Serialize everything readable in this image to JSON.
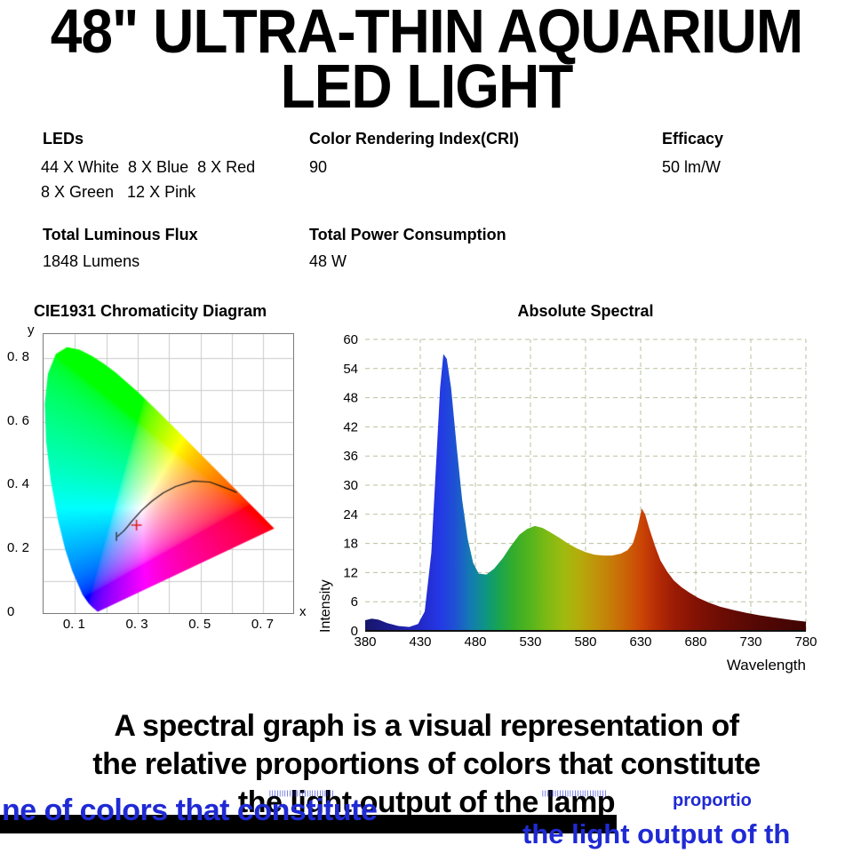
{
  "title": {
    "line1": "48\" ULTRA-THIN AQUARIUM",
    "line2": "LED LIGHT"
  },
  "specs": {
    "leds": {
      "label": "LEDs",
      "line1": "44 X White  8 X Blue  8 X Red",
      "line2": "8 X Green   12 X Pink"
    },
    "cri": {
      "label": "Color Rendering Index(CRI)",
      "value": "90"
    },
    "efficacy": {
      "label": "Efficacy",
      "value": "50 lm/W"
    },
    "luminous_flux": {
      "label": "Total Luminous Flux",
      "value": "1848 Lumens"
    },
    "power": {
      "label": "Total Power Consumption",
      "value": "48 W"
    }
  },
  "chart_data": [
    {
      "type": "scatter",
      "title": "CIE1931 Chromaticity Diagram",
      "xlabel": "x",
      "ylabel": "y",
      "xlim": [
        0,
        0.795
      ],
      "ylim": [
        0,
        0.875
      ],
      "grid_step": 0.1,
      "x_ticks": [
        0.1,
        0.3,
        0.5,
        0.7
      ],
      "x_tick_labels": [
        "0. 1",
        "0. 3",
        "0. 5",
        "0. 7"
      ],
      "y_ticks": [
        0,
        0.2,
        0.4,
        0.6,
        0.8
      ],
      "y_tick_labels": [
        "0",
        "0. 2",
        "0. 4",
        "0. 6",
        "0. 8"
      ],
      "white_point_marker": {
        "x": 0.296,
        "y": 0.276,
        "symbol": "+",
        "color": "#e02020"
      },
      "planckian_locus": [
        [
          0.235,
          0.24
        ],
        [
          0.256,
          0.258
        ],
        [
          0.27,
          0.274
        ],
        [
          0.281,
          0.288
        ],
        [
          0.313,
          0.323
        ],
        [
          0.346,
          0.352
        ],
        [
          0.381,
          0.377
        ],
        [
          0.421,
          0.397
        ],
        [
          0.477,
          0.414
        ],
        [
          0.529,
          0.411
        ],
        [
          0.565,
          0.398
        ],
        [
          0.6,
          0.385
        ],
        [
          0.615,
          0.378
        ]
      ],
      "spectral_locus": [
        [
          0.1741,
          0.005
        ],
        [
          0.1733,
          0.0048
        ],
        [
          0.1726,
          0.0048
        ],
        [
          0.1714,
          0.0051
        ],
        [
          0.1689,
          0.0069
        ],
        [
          0.1644,
          0.0109
        ],
        [
          0.1566,
          0.0177
        ],
        [
          0.144,
          0.0297
        ],
        [
          0.1241,
          0.0578
        ],
        [
          0.0913,
          0.1327
        ],
        [
          0.0687,
          0.2007
        ],
        [
          0.0454,
          0.295
        ],
        [
          0.0235,
          0.4127
        ],
        [
          0.0082,
          0.5384
        ],
        [
          0.0039,
          0.6548
        ],
        [
          0.0139,
          0.7502
        ],
        [
          0.0389,
          0.812
        ],
        [
          0.0743,
          0.8338
        ],
        [
          0.1142,
          0.8262
        ],
        [
          0.1547,
          0.8059
        ],
        [
          0.1929,
          0.7816
        ],
        [
          0.2296,
          0.7543
        ],
        [
          0.3016,
          0.6923
        ],
        [
          0.3731,
          0.6245
        ],
        [
          0.4441,
          0.5547
        ],
        [
          0.5125,
          0.4866
        ],
        [
          0.5752,
          0.4242
        ],
        [
          0.627,
          0.3725
        ],
        [
          0.6658,
          0.334
        ],
        [
          0.6915,
          0.3083
        ],
        [
          0.719,
          0.2809
        ],
        [
          0.7347,
          0.2653
        ]
      ]
    },
    {
      "type": "area",
      "title": "Absolute Spectral",
      "xlabel": "Wavelength",
      "ylabel": "Intensity",
      "xlim": [
        380,
        780
      ],
      "ylim": [
        0,
        60
      ],
      "grid": true,
      "x_ticks": [
        380,
        430,
        480,
        530,
        580,
        630,
        680,
        730,
        780
      ],
      "y_ticks": [
        0,
        6,
        12,
        18,
        24,
        30,
        36,
        42,
        48,
        54,
        60
      ],
      "points": [
        [
          380,
          2.2
        ],
        [
          386,
          2.5
        ],
        [
          392,
          2.3
        ],
        [
          400,
          1.6
        ],
        [
          410,
          1.0
        ],
        [
          420,
          0.8
        ],
        [
          428,
          1.4
        ],
        [
          434,
          4
        ],
        [
          440,
          16
        ],
        [
          444,
          33
        ],
        [
          448,
          50
        ],
        [
          451,
          57
        ],
        [
          454,
          56
        ],
        [
          458,
          50
        ],
        [
          463,
          38
        ],
        [
          468,
          27
        ],
        [
          473,
          19
        ],
        [
          478,
          14
        ],
        [
          483,
          11.8
        ],
        [
          490,
          11.6
        ],
        [
          497,
          12.8
        ],
        [
          505,
          15
        ],
        [
          512,
          17.4
        ],
        [
          520,
          19.8
        ],
        [
          527,
          21
        ],
        [
          534,
          21.6
        ],
        [
          541,
          21.2
        ],
        [
          548,
          20.3
        ],
        [
          556,
          19.2
        ],
        [
          564,
          18
        ],
        [
          572,
          17
        ],
        [
          580,
          16.2
        ],
        [
          588,
          15.7
        ],
        [
          596,
          15.5
        ],
        [
          604,
          15.5
        ],
        [
          612,
          15.9
        ],
        [
          618,
          16.6
        ],
        [
          623,
          18
        ],
        [
          627,
          21
        ],
        [
          631,
          25.2
        ],
        [
          634,
          24
        ],
        [
          638,
          21
        ],
        [
          643,
          17.5
        ],
        [
          648,
          14.5
        ],
        [
          654,
          12.2
        ],
        [
          660,
          10.4
        ],
        [
          667,
          9
        ],
        [
          674,
          7.9
        ],
        [
          682,
          6.8
        ],
        [
          692,
          5.8
        ],
        [
          702,
          5
        ],
        [
          714,
          4.3
        ],
        [
          726,
          3.7
        ],
        [
          738,
          3.2
        ],
        [
          750,
          2.8
        ],
        [
          762,
          2.4
        ],
        [
          772,
          2.1
        ],
        [
          780,
          1.9
        ]
      ],
      "gradient_stops": [
        [
          380,
          "#17166a"
        ],
        [
          405,
          "#1d1d96"
        ],
        [
          430,
          "#2329c8"
        ],
        [
          448,
          "#2438e6"
        ],
        [
          462,
          "#1e53d2"
        ],
        [
          475,
          "#1479b4"
        ],
        [
          488,
          "#0d9387"
        ],
        [
          500,
          "#16a355"
        ],
        [
          515,
          "#35ad2a"
        ],
        [
          530,
          "#55b51c"
        ],
        [
          545,
          "#7cba14"
        ],
        [
          560,
          "#9fbb0f"
        ],
        [
          575,
          "#b5ab0b"
        ],
        [
          590,
          "#c0920a"
        ],
        [
          605,
          "#c67908"
        ],
        [
          620,
          "#cb5c06"
        ],
        [
          632,
          "#c94205"
        ],
        [
          645,
          "#b52c05"
        ],
        [
          660,
          "#9c1c05"
        ],
        [
          680,
          "#831204"
        ],
        [
          705,
          "#6b0c04"
        ],
        [
          735,
          "#550804"
        ],
        [
          780,
          "#3f0503"
        ]
      ],
      "gridline_color": "#b7c19e"
    }
  ],
  "footer": {
    "line1": "A spectral graph is a visual representation of",
    "line2": "the relative proportions of colors that constitute",
    "line3": "the light output of the lamp",
    "glitch": {
      "color": "#1f2ad4",
      "fragment_left": "ne of colors that constitute",
      "fragment_right": "the light output of th",
      "fragment_small": "proportio",
      "noise_left": "||||||||||||||||||||||||||",
      "noise_right": "||||||||||||||||||||||||||"
    }
  }
}
